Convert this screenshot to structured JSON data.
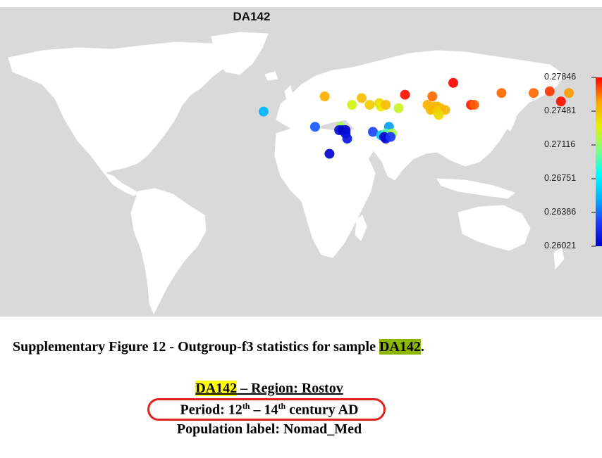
{
  "figure": {
    "title": "DA142",
    "colorbar_ticks": [
      "0.27846",
      "0.27481",
      "0.27116",
      "0.26751",
      "0.26386",
      "0.26021"
    ],
    "colorbar_colors": [
      "#0000c8",
      "#1e3cff",
      "#00b4ff",
      "#00ffff",
      "#7fff7f",
      "#e6f000",
      "#ffa500",
      "#ff0000"
    ],
    "background_color": "#d9d9d9",
    "land_color": "#ffffff"
  },
  "chart_data": {
    "type": "scatter",
    "title": "DA142",
    "colorbar_range": [
      0.26021,
      0.27846
    ],
    "colorbar_ticks": [
      0.27846,
      0.27481,
      0.27116,
      0.26751,
      0.26386,
      0.26021
    ],
    "points": [
      {
        "lon": 100,
        "lat": 73,
        "value": 0.2784
      },
      {
        "lon": 70,
        "lat": 66,
        "value": 0.2782
      },
      {
        "lon": 160,
        "lat": 68,
        "value": 0.2776
      },
      {
        "lon": 130,
        "lat": 67,
        "value": 0.2768
      },
      {
        "lon": 150,
        "lat": 67,
        "value": 0.2768
      },
      {
        "lon": 172,
        "lat": 67,
        "value": 0.276
      },
      {
        "lon": 87,
        "lat": 65,
        "value": 0.2768
      },
      {
        "lon": 167,
        "lat": 62,
        "value": 0.2782
      },
      {
        "lon": 111,
        "lat": 60,
        "value": 0.278
      },
      {
        "lon": 113,
        "lat": 60,
        "value": 0.277
      },
      {
        "lon": 20,
        "lat": 65,
        "value": 0.2755
      },
      {
        "lon": 43,
        "lat": 64,
        "value": 0.275
      },
      {
        "lon": 48,
        "lat": 60,
        "value": 0.2745
      },
      {
        "lon": 37,
        "lat": 60,
        "value": 0.2728
      },
      {
        "lon": 54,
        "lat": 61,
        "value": 0.274
      },
      {
        "lon": 55,
        "lat": 59,
        "value": 0.2735
      },
      {
        "lon": 58,
        "lat": 60,
        "value": 0.275
      },
      {
        "lon": 84,
        "lat": 60,
        "value": 0.2755
      },
      {
        "lon": 88,
        "lat": 59,
        "value": 0.2752
      },
      {
        "lon": 90,
        "lat": 59,
        "value": 0.275
      },
      {
        "lon": 87,
        "lat": 58,
        "value": 0.2752
      },
      {
        "lon": 92,
        "lat": 58,
        "value": 0.275
      },
      {
        "lon": 95,
        "lat": 57,
        "value": 0.2753
      },
      {
        "lon": 86,
        "lat": 57,
        "value": 0.2752
      },
      {
        "lon": 90,
        "lat": 56,
        "value": 0.2745
      },
      {
        "lon": 66,
        "lat": 58,
        "value": 0.2725
      },
      {
        "lon": 91,
        "lat": 54,
        "value": 0.274
      },
      {
        "lon": -18,
        "lat": 56,
        "value": 0.2655
      },
      {
        "lon": 14,
        "lat": 47,
        "value": 0.2635
      },
      {
        "lon": 30,
        "lat": 47,
        "value": 0.2715
      },
      {
        "lon": 29,
        "lat": 45,
        "value": 0.261
      },
      {
        "lon": 31,
        "lat": 45,
        "value": 0.2604
      },
      {
        "lon": 33,
        "lat": 45,
        "value": 0.2602
      },
      {
        "lon": 33,
        "lat": 43,
        "value": 0.2608
      },
      {
        "lon": 34,
        "lat": 40,
        "value": 0.2612
      },
      {
        "lon": 23,
        "lat": 31,
        "value": 0.2604
      },
      {
        "lon": 50,
        "lat": 44,
        "value": 0.263
      },
      {
        "lon": 60,
        "lat": 47,
        "value": 0.265
      },
      {
        "lon": 55,
        "lat": 42,
        "value": 0.266
      },
      {
        "lon": 57,
        "lat": 42,
        "value": 0.267
      },
      {
        "lon": 58,
        "lat": 43,
        "value": 0.27
      },
      {
        "lon": 62,
        "lat": 43,
        "value": 0.2718
      },
      {
        "lon": 57,
        "lat": 41,
        "value": 0.2604
      },
      {
        "lon": 58,
        "lat": 40,
        "value": 0.2608
      },
      {
        "lon": 61,
        "lat": 41,
        "value": 0.2625
      }
    ]
  },
  "caption": {
    "prefix": "Supplementary Figure 12 - Outgroup-f3 statistics for sample ",
    "sample": "DA142",
    "suffix": "."
  },
  "info": {
    "sample": "DA142",
    "region": " – Region: Rostov",
    "period_prefix": "Period: 12",
    "period_sup1": "th",
    "period_middle": " – 14",
    "period_sup2": "th",
    "period_suffix": " century AD",
    "population": "Population label: Nomad_Med"
  },
  "annotation_color": "#e0211e"
}
